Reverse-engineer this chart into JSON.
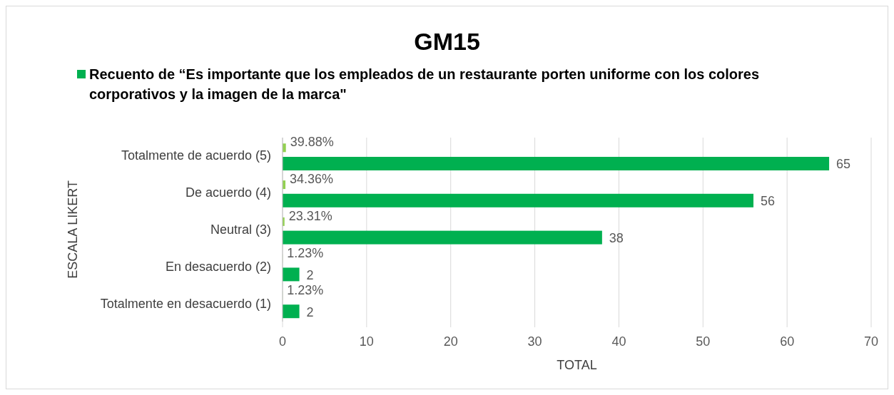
{
  "chart_data": {
    "type": "bar",
    "orientation": "horizontal",
    "title": "GM15",
    "xlabel": "TOTAL",
    "ylabel": "ESCALA LIKERT",
    "categories": [
      "Totalmente de acuerdo (5)",
      "De acuerdo (4)",
      "Neutral (3)",
      "En desacuerdo (2)",
      "Totalmente en desacuerdo (1)"
    ],
    "series": [
      {
        "color": "#92d050",
        "values": [
          0.3988,
          0.3436,
          0.2331,
          0.0123,
          0.0123
        ],
        "value_labels": [
          "39.88%",
          "34.36%",
          "23.31%",
          "1.23%",
          "1.23%"
        ]
      },
      {
        "name": "Recuento de “Es importante que los empleados de un restaurante porten uniforme con los colores corporativos y la imagen de la marca\"",
        "color": "#00b050",
        "values": [
          65,
          56,
          38,
          2,
          2
        ],
        "value_labels": [
          "65",
          "56",
          "38",
          "2",
          "2"
        ]
      }
    ],
    "xlim": [
      0,
      70
    ],
    "xticks": [
      0,
      10,
      20,
      30,
      40,
      50,
      60,
      70
    ],
    "grid": "x",
    "legend": "top left"
  }
}
